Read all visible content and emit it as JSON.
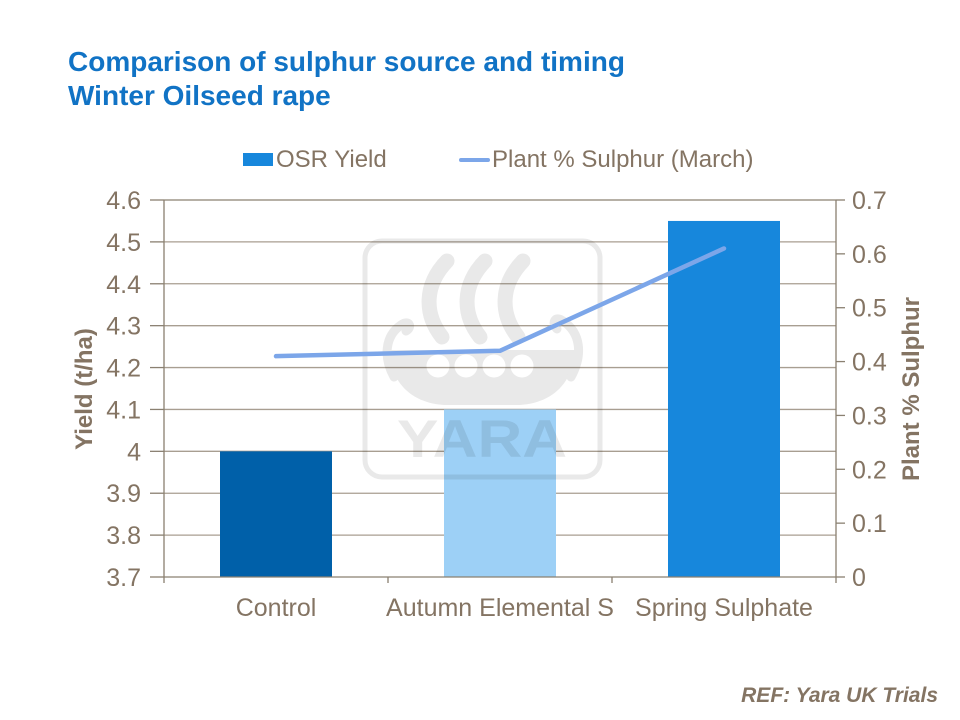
{
  "title": {
    "line1": "Comparison of sulphur source and timing",
    "line2": "Winter Oilseed rape"
  },
  "footer": {
    "ref": "REF: Yara UK Trials"
  },
  "watermark": {
    "text": "YARA"
  },
  "colors": {
    "background": "#FFFFFF",
    "title": "#1173C5",
    "axis_text": "#847463",
    "gridline": "#A89E91",
    "axis_line": "#8A8071",
    "bar_legend": "#1787DC",
    "line_series": "#7CA6E9",
    "watermark": "#E9E9E9"
  },
  "chart_data": {
    "type": "combo",
    "categories": [
      "Control",
      "Autumn Elemental S",
      "Spring Sulphate"
    ],
    "series": [
      {
        "name": "OSR Yield",
        "type": "bar",
        "axis": "left",
        "values": [
          4.0,
          4.1,
          4.55
        ],
        "bar_colors": [
          "#0060A9",
          "#9DD0F6",
          "#1787DC"
        ]
      },
      {
        "name": "Plant % Sulphur (March)",
        "type": "line",
        "axis": "right",
        "values": [
          0.41,
          0.42,
          0.61
        ],
        "color": "#7CA6E9"
      }
    ],
    "left_axis": {
      "title": "Yield (t/ha)",
      "min": 3.7,
      "max": 4.6,
      "step": 0.1
    },
    "right_axis": {
      "title": "Plant % Sulphur",
      "min": 0,
      "max": 0.7,
      "step": 0.1
    },
    "grid": true,
    "legend_position": "top"
  }
}
